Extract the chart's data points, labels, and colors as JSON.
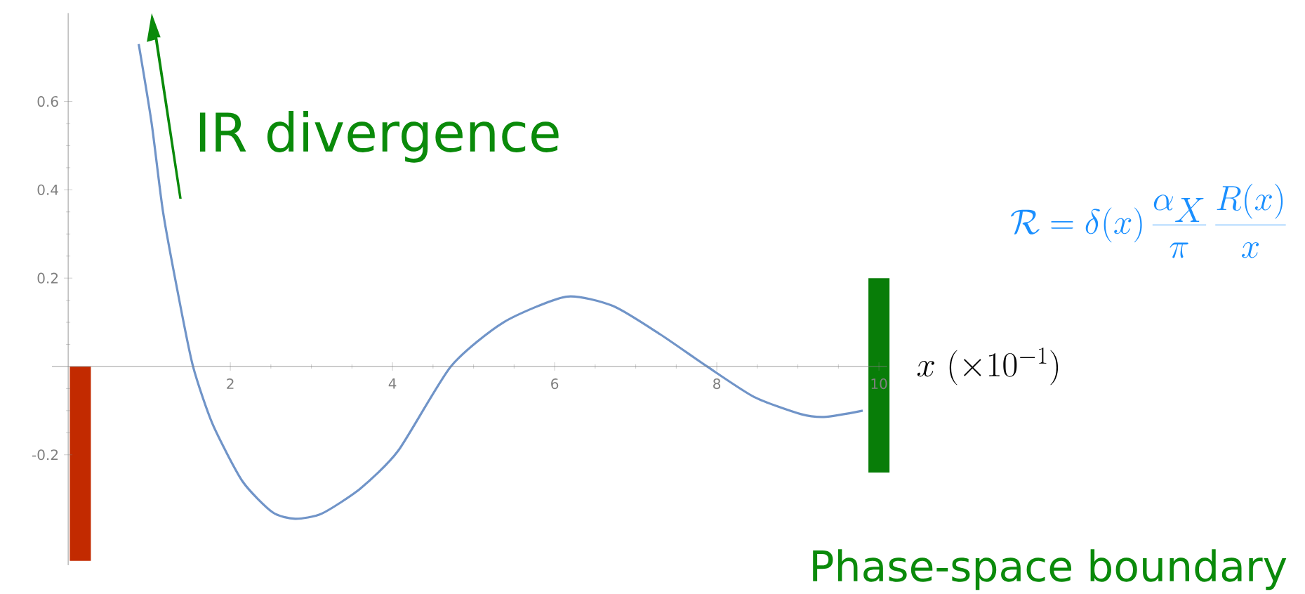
{
  "chart_data": {
    "type": "line",
    "xlabel": "x\\ (\\times 10^{-1})",
    "xlim": [
      -0.2,
      10.1
    ],
    "ylim": [
      -0.45,
      0.8
    ],
    "xticks": [
      2,
      4,
      6,
      8,
      10
    ],
    "yticks": [
      {
        "value": -0.2,
        "label": "-0.2"
      },
      {
        "value": 0,
        "label": null
      },
      0.2,
      0.4,
      0.6
    ],
    "series": [
      {
        "color": "#7094c8",
        "x": [
          0.87,
          1.03,
          1.17,
          1.36,
          1.54,
          1.78,
          2.15,
          2.52,
          2.8,
          3.13,
          3.6,
          4.07,
          4.72,
          5.37,
          6.14,
          6.72,
          7.3,
          7.88,
          8.46,
          9.04,
          9.35,
          9.8
        ],
        "values": [
          0.73,
          0.55,
          0.35,
          0.16,
          0,
          -0.13,
          -0.26,
          -0.33,
          -0.345,
          -0.333,
          -0.277,
          -0.191,
          0,
          0.1,
          0.158,
          0.137,
          0.073,
          0,
          -0.069,
          -0.108,
          -0.114,
          -0.1
        ]
      },
      {
        "type": "bar",
        "x": [
          0.15,
          10
        ],
        "values": [
          -0.44,
          0.44
        ],
        "base": [
          0,
          -0.24
        ],
        "colors": [
          "#c22a00",
          "#087d08"
        ]
      }
    ],
    "annotations": [
      "IR divergence",
      "\\mathcal{R} = \\delta(x)\\,\\frac{\\alpha_X}{\\pi}\\,\\frac{R(x)}{x}",
      "Phase-space boundary"
    ]
  }
}
